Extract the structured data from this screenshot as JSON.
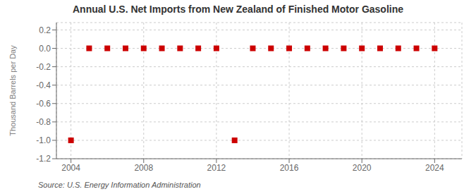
{
  "chart_data": {
    "type": "scatter",
    "title": "Annual U.S. Net Imports from New Zealand of Finished Motor Gasoline",
    "ylabel": "Thousand Barrels per Day",
    "annotations": [
      "Source: U.S. Energy Information Administration"
    ],
    "x": [
      2004,
      2005,
      2006,
      2007,
      2008,
      2009,
      2010,
      2011,
      2012,
      2013,
      2014,
      2015,
      2016,
      2017,
      2018,
      2019,
      2020,
      2021,
      2022,
      2023,
      2024
    ],
    "values": [
      -1,
      0,
      0,
      0,
      0,
      0,
      0,
      0,
      0,
      -1,
      0,
      0,
      0,
      0,
      0,
      0,
      0,
      0,
      0,
      0,
      0
    ],
    "color": "#cc0000",
    "marker": "square",
    "xlim": [
      2003.2,
      2025.5
    ],
    "xticks": [
      2004,
      2008,
      2012,
      2016,
      2020,
      2024
    ],
    "ylim": [
      -1.2,
      0.28
    ],
    "yticks": [
      0.2,
      {
        "value": 0,
        "label": "0.0"
      },
      -0.2,
      -0.4,
      -0.6,
      -0.8,
      {
        "value": -1,
        "label": "-1.0"
      },
      -1.2
    ],
    "grid": true
  }
}
